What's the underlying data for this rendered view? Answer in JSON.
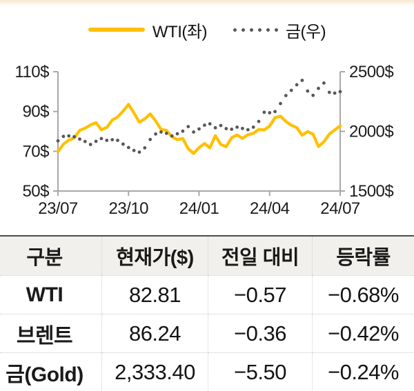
{
  "widget_title": "WTI / Gold price chart with quote table",
  "colors": {
    "wti_line": "#FFC000",
    "gold_dots": "#575757",
    "axis": "#a8a8a8",
    "table_header_bg": "#f1f0ed",
    "table_top_border": "#4d4d4d",
    "top_band": "#f7e6d0"
  },
  "chart_data": {
    "type": "line",
    "title": "",
    "legend_position": "top-center",
    "grid": false,
    "x_tick_labels": [
      "23/07",
      "23/10",
      "24/01",
      "24/04",
      "24/07"
    ],
    "x_unit": "weekly points from 2023-07 to 2024-07",
    "left_axis": {
      "tick_labels": [
        "110$",
        "90$",
        "70$",
        "50$"
      ],
      "min": 50,
      "max": 110
    },
    "right_axis": {
      "tick_labels": [
        "2500$",
        "2000$",
        "1500$"
      ],
      "min": 1500,
      "max": 2500
    },
    "series": [
      {
        "name": "WTI(좌)",
        "axis": "left",
        "style": "line",
        "color": "#FFC000",
        "values": [
          69.8,
          73.6,
          75.6,
          76.7,
          80.5,
          81.6,
          83.2,
          84.4,
          80.8,
          82.0,
          85.7,
          87.2,
          90.2,
          93.6,
          89.3,
          84.6,
          86.3,
          88.8,
          85.2,
          81.0,
          80.5,
          77.3,
          75.8,
          76.4,
          71.3,
          68.9,
          71.8,
          73.9,
          71.7,
          77.8,
          73.4,
          72.3,
          76.8,
          78.2,
          76.5,
          78.3,
          79.0,
          81.0,
          80.7,
          82.7,
          86.9,
          87.6,
          85.0,
          83.1,
          81.9,
          78.1,
          79.9,
          78.6,
          72.4,
          74.8,
          78.6,
          80.7,
          82.8
        ]
      },
      {
        "name": "금(우)",
        "axis": "right",
        "style": "dots",
        "color": "#575757",
        "values": [
          1920,
          1958,
          1962,
          1955,
          1935,
          1915,
          1890,
          1917,
          1940,
          1925,
          1930,
          1925,
          1893,
          1865,
          1840,
          1826,
          1862,
          1932,
          1978,
          1995,
          1984,
          1962,
          1980,
          2002,
          2040,
          1995,
          2020,
          2052,
          2063,
          2030,
          2049,
          2023,
          2018,
          2035,
          2024,
          2014,
          2035,
          2083,
          2160,
          2156,
          2166,
          2233,
          2300,
          2344,
          2391,
          2428,
          2338,
          2302,
          2360,
          2405,
          2327,
          2321,
          2333
        ]
      }
    ]
  },
  "table": {
    "headers": [
      "구분",
      "현재가($)",
      "전일 대비",
      "등락률"
    ],
    "rows": [
      {
        "cells": [
          "WTI",
          "82.81",
          "−0.57",
          "−0.68%"
        ]
      },
      {
        "cells": [
          "브렌트",
          "86.24",
          "−0.36",
          "−0.42%"
        ]
      },
      {
        "cells": [
          "금(Gold)",
          "2,333.40",
          "−5.50",
          "−0.24%"
        ]
      }
    ]
  }
}
